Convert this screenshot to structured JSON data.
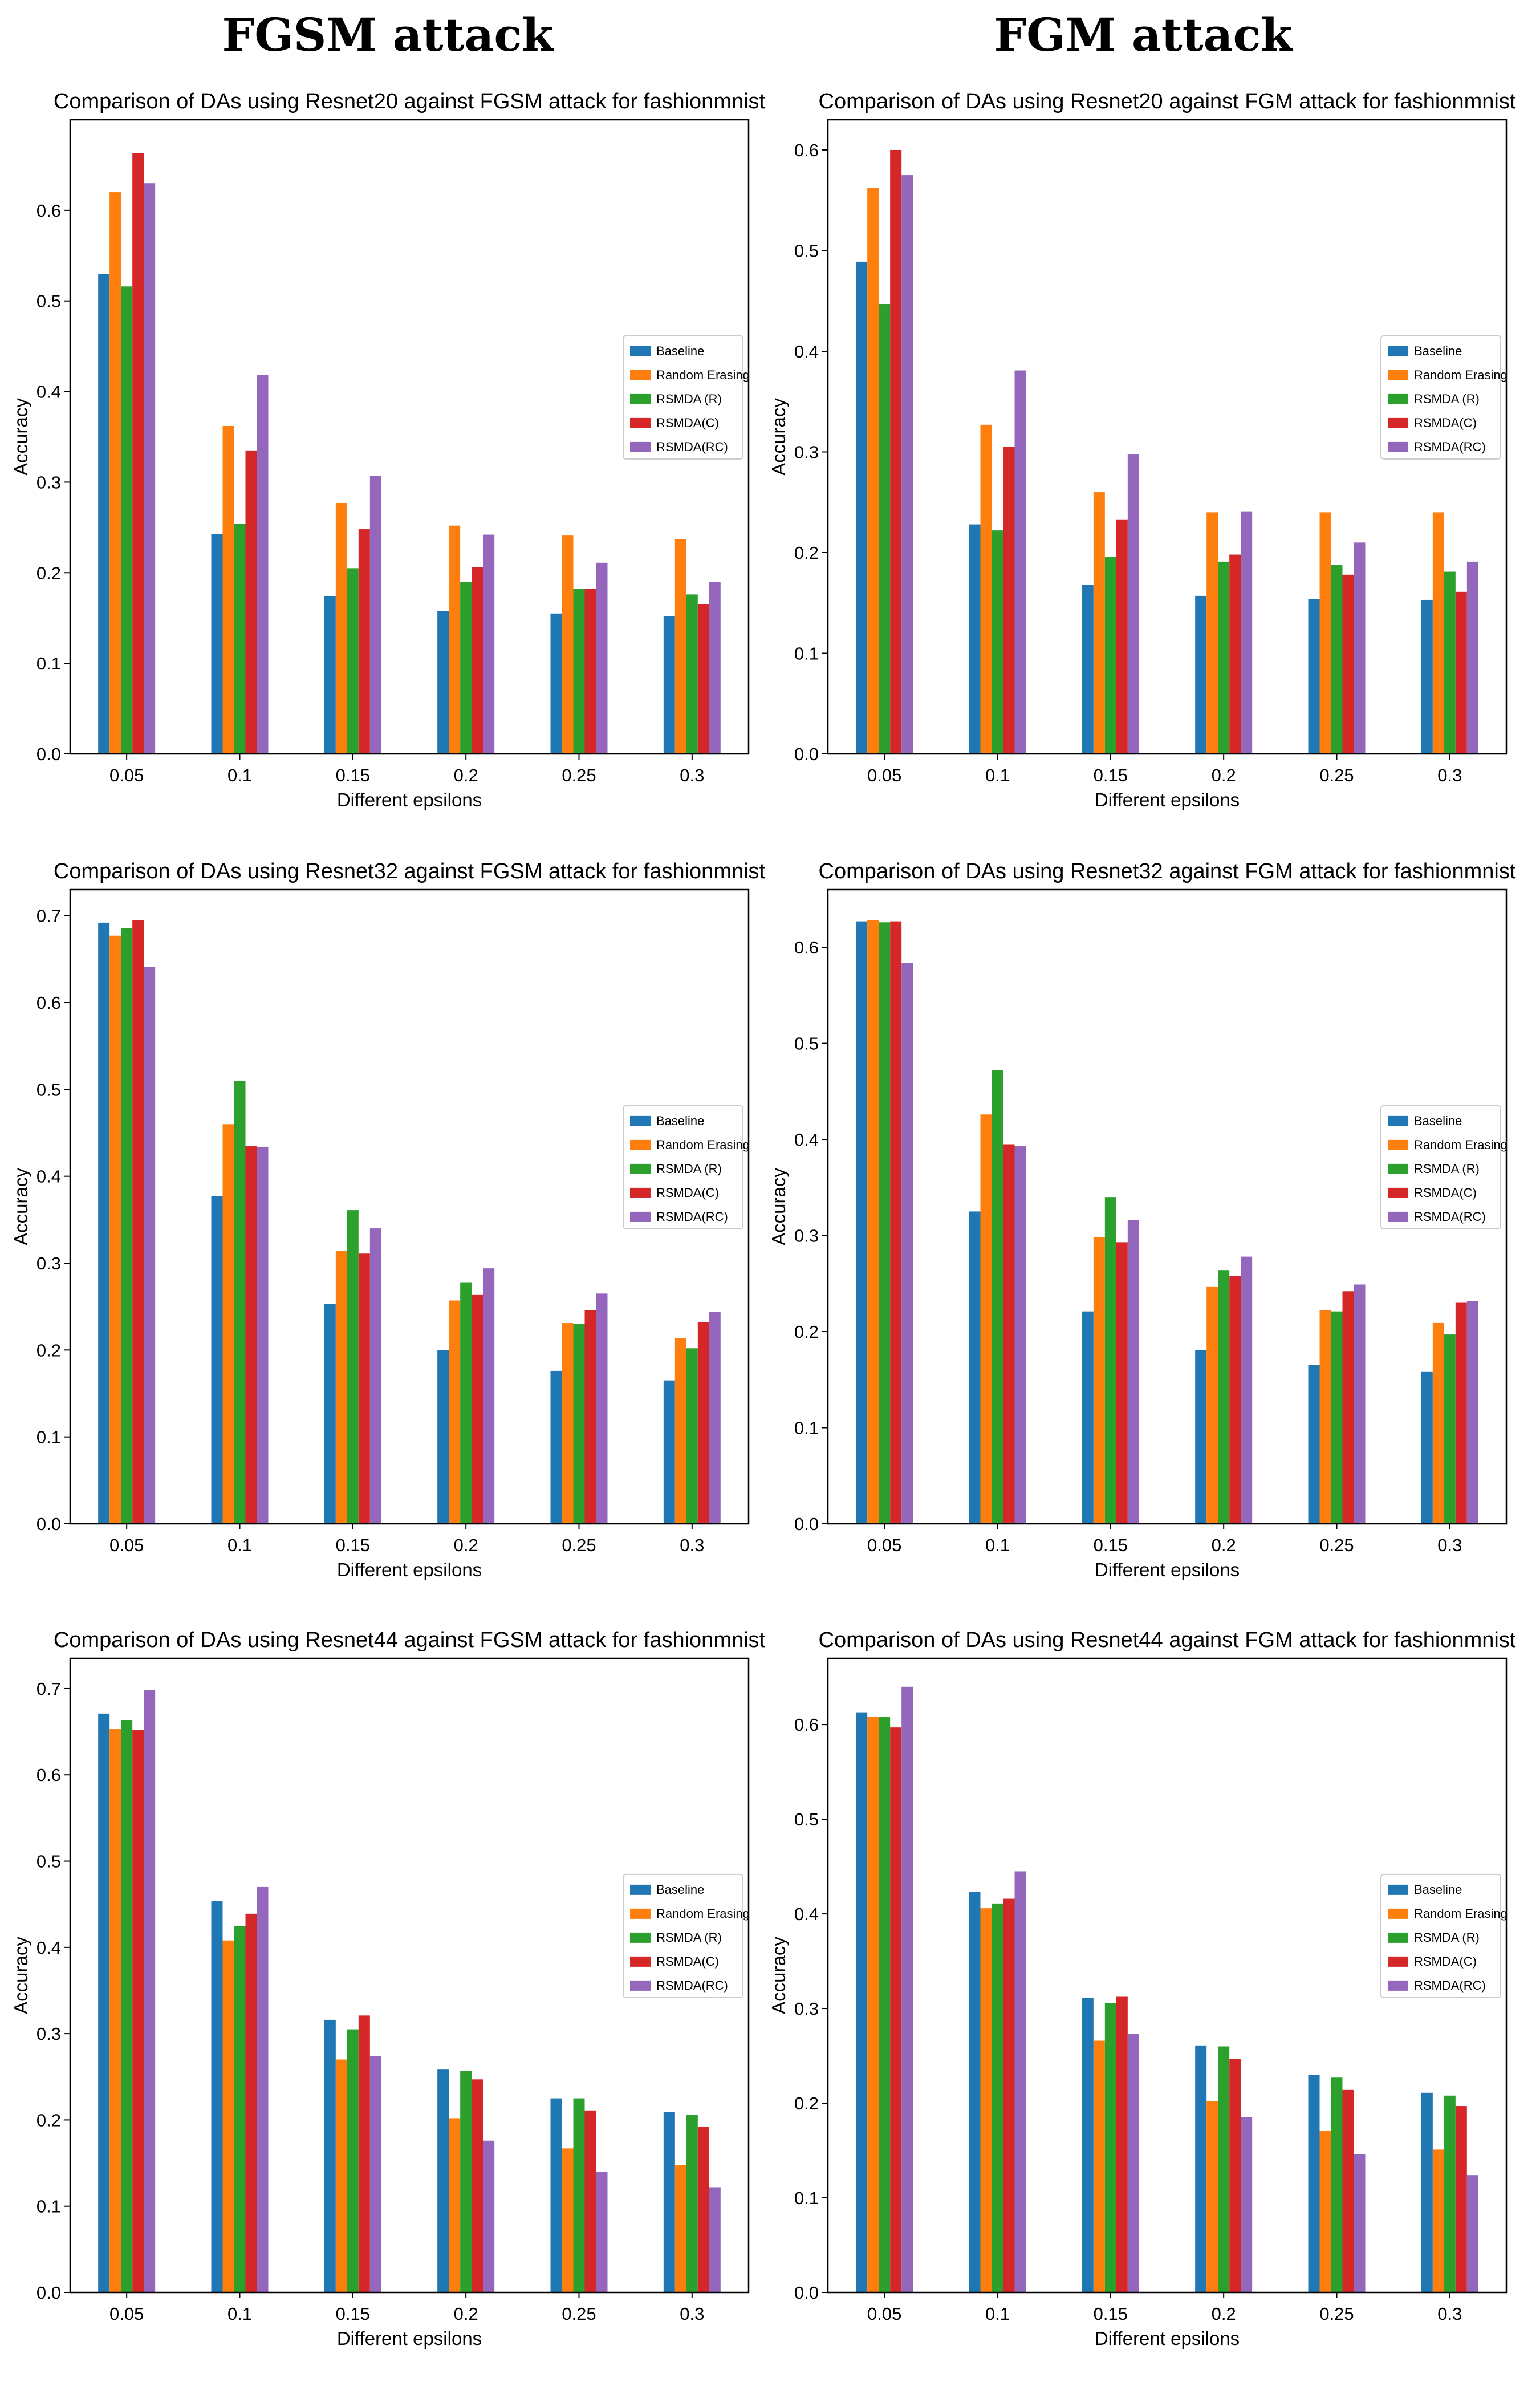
{
  "headings": {
    "left": "FGSM attack",
    "right": "FGM attack"
  },
  "colors": {
    "series": [
      "#1f77b4",
      "#ff7f0e",
      "#2ca02c",
      "#d62728",
      "#9467bd"
    ]
  },
  "chart_data": [
    {
      "type": "bar",
      "title": "Comparison of DAs using Resnet20 against FGSM attack for fashionmnist",
      "xlabel": "Different epsilons",
      "ylabel": "Accuracy",
      "categories": [
        "0.05",
        "0.1",
        "0.15",
        "0.2",
        "0.25",
        "0.3"
      ],
      "ylim": [
        0,
        0.7
      ],
      "yticks": [
        "0.0",
        "0.1",
        "0.2",
        "0.3",
        "0.4",
        "0.5",
        "0.6"
      ],
      "legend_position": "center-right",
      "series": [
        {
          "name": "Baseline",
          "values": [
            0.53,
            0.243,
            0.174,
            0.158,
            0.155,
            0.152
          ]
        },
        {
          "name": "Random Erasing",
          "values": [
            0.62,
            0.362,
            0.277,
            0.252,
            0.241,
            0.237
          ]
        },
        {
          "name": "RSMDA (R)",
          "values": [
            0.516,
            0.254,
            0.205,
            0.19,
            0.182,
            0.176
          ]
        },
        {
          "name": "RSMDA(C)",
          "values": [
            0.663,
            0.335,
            0.248,
            0.206,
            0.182,
            0.165
          ]
        },
        {
          "name": "RSMDA(RC)",
          "values": [
            0.63,
            0.418,
            0.307,
            0.242,
            0.211,
            0.19
          ]
        }
      ]
    },
    {
      "type": "bar",
      "title": "Comparison of DAs using Resnet20 against FGM attack for fashionmnist",
      "xlabel": "Different epsilons",
      "ylabel": "Accuracy",
      "categories": [
        "0.05",
        "0.1",
        "0.15",
        "0.2",
        "0.25",
        "0.3"
      ],
      "ylim": [
        0,
        0.63
      ],
      "yticks": [
        "0.0",
        "0.1",
        "0.2",
        "0.3",
        "0.4",
        "0.5",
        "0.6"
      ],
      "legend_position": "center-right",
      "series": [
        {
          "name": "Baseline",
          "values": [
            0.489,
            0.228,
            0.168,
            0.157,
            0.154,
            0.153
          ]
        },
        {
          "name": "Random Erasing",
          "values": [
            0.562,
            0.327,
            0.26,
            0.24,
            0.24,
            0.24
          ]
        },
        {
          "name": "RSMDA (R)",
          "values": [
            0.447,
            0.222,
            0.196,
            0.191,
            0.188,
            0.181
          ]
        },
        {
          "name": "RSMDA(C)",
          "values": [
            0.6,
            0.305,
            0.233,
            0.198,
            0.178,
            0.161
          ]
        },
        {
          "name": "RSMDA(RC)",
          "values": [
            0.575,
            0.381,
            0.298,
            0.241,
            0.21,
            0.191
          ]
        }
      ]
    },
    {
      "type": "bar",
      "title": "Comparison of DAs using Resnet32 against FGSM attack for fashionmnist",
      "xlabel": "Different epsilons",
      "ylabel": "Accuracy",
      "categories": [
        "0.05",
        "0.1",
        "0.15",
        "0.2",
        "0.25",
        "0.3"
      ],
      "ylim": [
        0,
        0.73
      ],
      "yticks": [
        "0.0",
        "0.1",
        "0.2",
        "0.3",
        "0.4",
        "0.5",
        "0.6",
        "0.7"
      ],
      "legend_position": "center-right",
      "series": [
        {
          "name": "Baseline",
          "values": [
            0.692,
            0.377,
            0.253,
            0.2,
            0.176,
            0.165
          ]
        },
        {
          "name": "Random Erasing",
          "values": [
            0.677,
            0.46,
            0.314,
            0.257,
            0.231,
            0.214
          ]
        },
        {
          "name": "RSMDA (R)",
          "values": [
            0.686,
            0.51,
            0.361,
            0.278,
            0.23,
            0.202
          ]
        },
        {
          "name": "RSMDA(C)",
          "values": [
            0.695,
            0.435,
            0.311,
            0.264,
            0.246,
            0.232
          ]
        },
        {
          "name": "RSMDA(RC)",
          "values": [
            0.641,
            0.434,
            0.34,
            0.294,
            0.265,
            0.244
          ]
        }
      ]
    },
    {
      "type": "bar",
      "title": "Comparison of DAs using Resnet32 against FGM attack for fashionmnist",
      "xlabel": "Different epsilons",
      "ylabel": "Accuracy",
      "categories": [
        "0.05",
        "0.1",
        "0.15",
        "0.2",
        "0.25",
        "0.3"
      ],
      "ylim": [
        0,
        0.66
      ],
      "yticks": [
        "0.0",
        "0.1",
        "0.2",
        "0.3",
        "0.4",
        "0.5",
        "0.6"
      ],
      "legend_position": "center-right",
      "series": [
        {
          "name": "Baseline",
          "values": [
            0.627,
            0.325,
            0.221,
            0.181,
            0.165,
            0.158
          ]
        },
        {
          "name": "Random Erasing",
          "values": [
            0.628,
            0.426,
            0.298,
            0.247,
            0.222,
            0.209
          ]
        },
        {
          "name": "RSMDA (R)",
          "values": [
            0.626,
            0.472,
            0.34,
            0.264,
            0.221,
            0.197
          ]
        },
        {
          "name": "RSMDA(C)",
          "values": [
            0.627,
            0.395,
            0.293,
            0.258,
            0.242,
            0.23
          ]
        },
        {
          "name": "RSMDA(RC)",
          "values": [
            0.584,
            0.393,
            0.316,
            0.278,
            0.249,
            0.232
          ]
        }
      ]
    },
    {
      "type": "bar",
      "title": "Comparison of DAs using Resnet44 against FGSM attack for fashionmnist",
      "xlabel": "Different epsilons",
      "ylabel": "Accuracy",
      "categories": [
        "0.05",
        "0.1",
        "0.15",
        "0.2",
        "0.25",
        "0.3"
      ],
      "ylim": [
        0,
        0.735
      ],
      "yticks": [
        "0.0",
        "0.1",
        "0.2",
        "0.3",
        "0.4",
        "0.5",
        "0.6",
        "0.7"
      ],
      "legend_position": "center-right",
      "series": [
        {
          "name": "Baseline",
          "values": [
            0.671,
            0.454,
            0.316,
            0.259,
            0.225,
            0.209
          ]
        },
        {
          "name": "Random Erasing",
          "values": [
            0.653,
            0.408,
            0.27,
            0.202,
            0.167,
            0.148
          ]
        },
        {
          "name": "RSMDA (R)",
          "values": [
            0.663,
            0.425,
            0.305,
            0.257,
            0.225,
            0.206
          ]
        },
        {
          "name": "RSMDA(C)",
          "values": [
            0.652,
            0.439,
            0.321,
            0.247,
            0.211,
            0.192
          ]
        },
        {
          "name": "RSMDA(RC)",
          "values": [
            0.698,
            0.47,
            0.274,
            0.176,
            0.14,
            0.122
          ]
        }
      ]
    },
    {
      "type": "bar",
      "title": "Comparison of DAs using Resnet44 against FGM attack for fashionmnist",
      "xlabel": "Different epsilons",
      "ylabel": "Accuracy",
      "categories": [
        "0.05",
        "0.1",
        "0.15",
        "0.2",
        "0.25",
        "0.3"
      ],
      "ylim": [
        0,
        0.67
      ],
      "yticks": [
        "0.0",
        "0.1",
        "0.2",
        "0.3",
        "0.4",
        "0.5",
        "0.6"
      ],
      "legend_position": "center-right",
      "series": [
        {
          "name": "Baseline",
          "values": [
            0.613,
            0.423,
            0.311,
            0.261,
            0.23,
            0.211
          ]
        },
        {
          "name": "Random Erasing",
          "values": [
            0.608,
            0.406,
            0.266,
            0.202,
            0.171,
            0.151
          ]
        },
        {
          "name": "RSMDA (R)",
          "values": [
            0.608,
            0.411,
            0.306,
            0.26,
            0.227,
            0.208
          ]
        },
        {
          "name": "RSMDA(C)",
          "values": [
            0.597,
            0.416,
            0.313,
            0.247,
            0.214,
            0.197
          ]
        },
        {
          "name": "RSMDA(RC)",
          "values": [
            0.64,
            0.445,
            0.273,
            0.185,
            0.146,
            0.124
          ]
        }
      ]
    }
  ]
}
